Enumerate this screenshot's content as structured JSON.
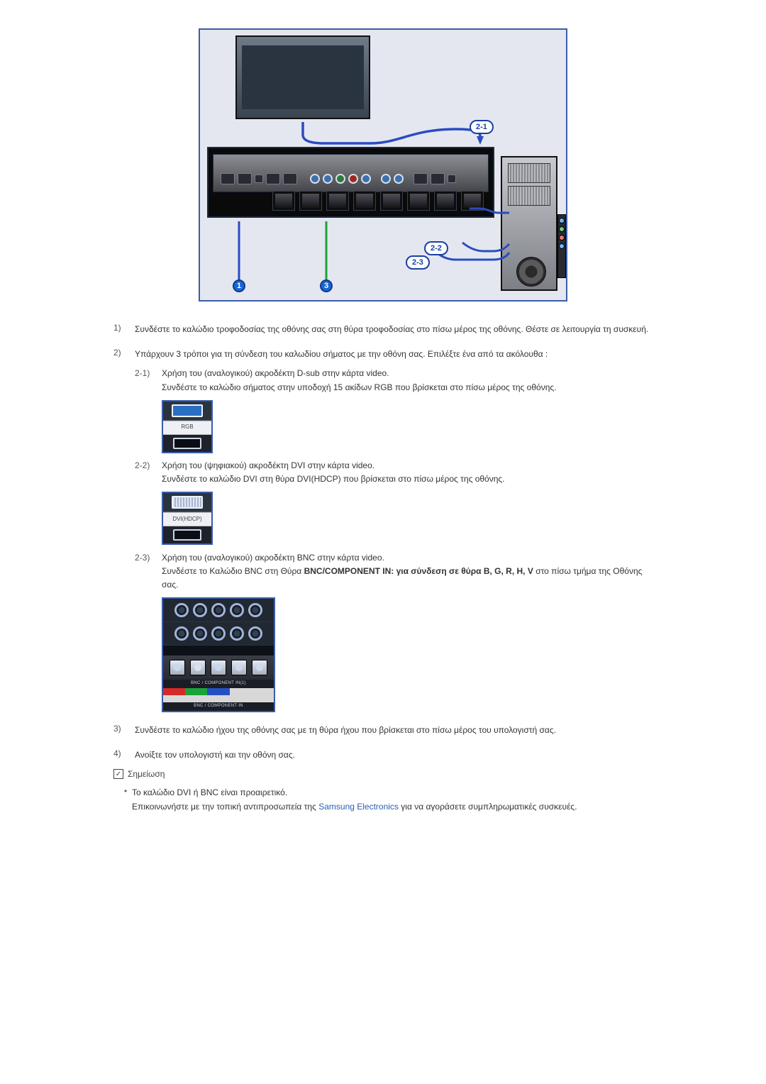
{
  "diagram": {
    "callouts": {
      "c21": "2-1",
      "c22": "2-2",
      "c23": "2-3",
      "n1": "1",
      "n3": "3"
    },
    "colors": {
      "frame": "#3a5da8",
      "bg": "#e4e7ef",
      "cable_blue": "#2a4cc0",
      "cable_green": "#1aa33a",
      "cable_arrow": "#3a5da8"
    }
  },
  "items": {
    "i1": {
      "num": "1)",
      "text": "Συνδέστε το καλώδιο τροφοδοσίας της οθόνης σας στη θύρα τροφοδοσίας στο πίσω μέρος της οθόνης. Θέστε σε λειτουργία τη συσκευή."
    },
    "i2": {
      "num": "2)",
      "text": "Υπάρχουν 3 τρόποι για τη σύνδεση του καλωδίου σήματος με την οθόνη σας. Επιλέξτε ένα από τα ακόλουθα :"
    },
    "s21": {
      "num": "2-1)",
      "line1": "Χρήση του (αναλογικού) ακροδέκτη D-sub στην κάρτα video.",
      "line2": "Συνδέστε το καλώδιο σήματος στην υποδοχή 15 ακίδων RGB που βρίσκεται στο πίσω μέρος της οθόνης.",
      "label": "RGB"
    },
    "s22": {
      "num": "2-2)",
      "line1": "Χρήση του (ψηφιακού) ακροδέκτη DVI στην κάρτα video.",
      "line2": "Συνδέστε το καλώδιο DVI στη θύρα DVI(HDCP) που βρίσκεται στο πίσω μέρος της οθόνης.",
      "label": "DVI(HDCP)"
    },
    "s23": {
      "num": "2-3)",
      "line1": "Χρήση του (αναλογικού) ακροδέκτη BNC στην κάρτα video.",
      "line2a": "Συνδέστε το Καλώδιο BNC στη Θύρα ",
      "line2b": "BNC/COMPONENT IN: για σύνδεση σε θύρα B, G, R, H, V",
      "line2c": " στο πίσω τμήμα της Οθόνης σας.",
      "label_top": "BNC / COMPONENT IN(1)",
      "label_bot": "BNC / COMPONENT IN"
    },
    "i3": {
      "num": "3)",
      "text": "Συνδέστε το καλώδιο ήχου της οθόνης σας με τη θύρα ήχου που βρίσκεται στο πίσω μέρος του υπολογιστή σας."
    },
    "i4": {
      "num": "4)",
      "text": " Ανοίξτε τον υπολογιστή και την οθόνη σας."
    },
    "note_label": "Σημείωση",
    "bullet": {
      "line1": "Το καλώδιο DVI ή BNC είναι προαιρετικό.",
      "line2a": "Επικοινωνήστε με την τοπική αντιπροσωπεία της ",
      "link": "Samsung Electronics",
      "line2b": " για να αγοράσετε συμπληρωματικές συσκευές."
    }
  },
  "bnc_colors": [
    "#d52a2a",
    "#1aa33a",
    "#2452c2",
    "#d8d8d8",
    "#d8d8d8"
  ],
  "bnc_colors2": [
    "#d8d8d8",
    "#d8d8d8",
    "#d8d8d8",
    "#d8d8d8",
    "#d8d8d8"
  ]
}
